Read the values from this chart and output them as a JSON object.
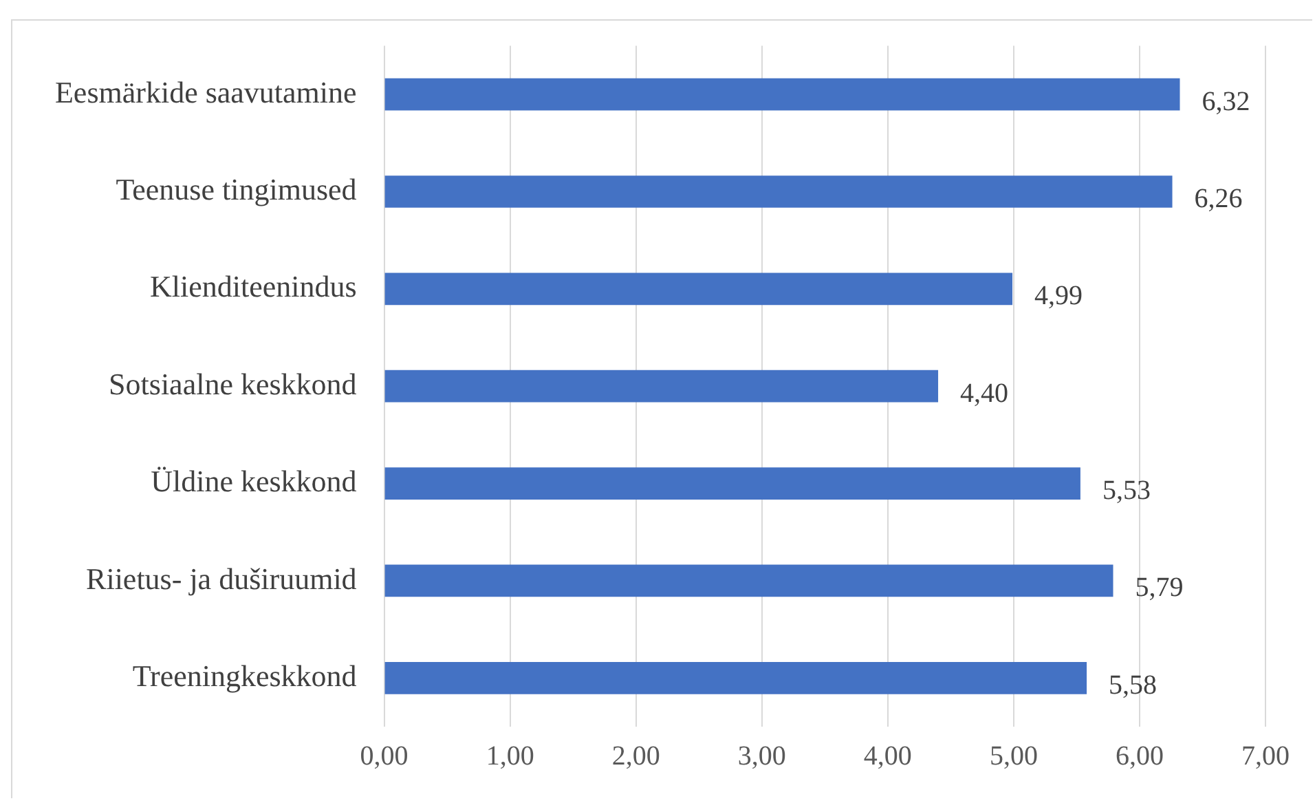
{
  "chart_data": {
    "type": "bar",
    "orientation": "horizontal",
    "categories": [
      "Eesmärkide saavutamine",
      "Teenuse tingimused",
      "Klienditeenindus",
      "Sotsiaalne keskkond",
      "Üldine keskkond",
      "Riietus- ja duširuumid",
      "Treeningkeskkond"
    ],
    "values": [
      6.32,
      6.26,
      4.99,
      4.4,
      5.53,
      5.79,
      5.58
    ],
    "value_labels": [
      "6,32",
      "6,26",
      "4,99",
      "4,40",
      "5,53",
      "5,79",
      "5,58"
    ],
    "color": "#4472c4",
    "xlim": [
      0,
      7
    ],
    "xticks": [
      {
        "value": 0,
        "label": "0,00"
      },
      {
        "value": 1,
        "label": "1,00"
      },
      {
        "value": 2,
        "label": "2,00"
      },
      {
        "value": 3,
        "label": "3,00"
      },
      {
        "value": 4,
        "label": "4,00"
      },
      {
        "value": 5,
        "label": "5,00"
      },
      {
        "value": 6,
        "label": "6,00"
      },
      {
        "value": 7,
        "label": "7,00"
      }
    ],
    "grid": "x",
    "legend": false
  }
}
